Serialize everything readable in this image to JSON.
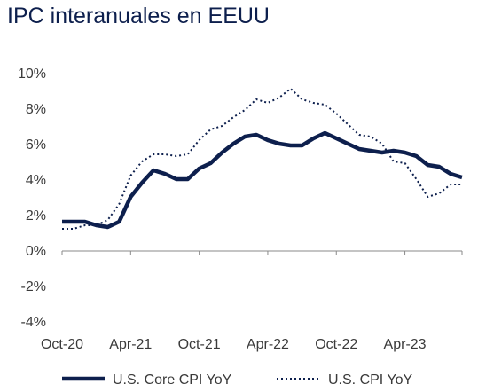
{
  "title": "IPC interanuales en EEUU",
  "chart_data": {
    "type": "line",
    "title": "IPC interanuales en EEUU",
    "xlabel": "",
    "ylabel": "",
    "x": [
      "Oct-20",
      "Nov-20",
      "Dec-20",
      "Jan-21",
      "Feb-21",
      "Mar-21",
      "Apr-21",
      "May-21",
      "Jun-21",
      "Jul-21",
      "Aug-21",
      "Sep-21",
      "Oct-21",
      "Nov-21",
      "Dec-21",
      "Jan-22",
      "Feb-22",
      "Mar-22",
      "Apr-22",
      "May-22",
      "Jun-22",
      "Jul-22",
      "Aug-22",
      "Sep-22",
      "Oct-22",
      "Nov-22",
      "Dec-22",
      "Jan-23",
      "Feb-23",
      "Mar-23",
      "Apr-23",
      "May-23",
      "Jun-23",
      "Jul-23",
      "Aug-23",
      "Sep-23"
    ],
    "x_tick_labels": [
      "Oct-20",
      "Apr-21",
      "Oct-21",
      "Apr-22",
      "Oct-22",
      "Apr-23"
    ],
    "y_tick_labels": [
      "10%",
      "8%",
      "6%",
      "4%",
      "2%",
      "0%",
      "-2%",
      "-4%"
    ],
    "ylim": [
      -4,
      10
    ],
    "y_unit": "%",
    "series": [
      {
        "name": "U.S. Core CPI YoY",
        "style": "solid",
        "color": "#0d1f4d",
        "values": [
          1.6,
          1.6,
          1.6,
          1.4,
          1.3,
          1.6,
          3.0,
          3.8,
          4.5,
          4.3,
          4.0,
          4.0,
          4.6,
          4.9,
          5.5,
          6.0,
          6.4,
          6.5,
          6.2,
          6.0,
          5.9,
          5.9,
          6.3,
          6.6,
          6.3,
          6.0,
          5.7,
          5.6,
          5.5,
          5.6,
          5.5,
          5.3,
          4.8,
          4.7,
          4.3,
          4.1
        ]
      },
      {
        "name": "U.S. CPI YoY",
        "style": "dotted",
        "color": "#0d1f4d",
        "values": [
          1.2,
          1.2,
          1.4,
          1.4,
          1.7,
          2.6,
          4.2,
          5.0,
          5.4,
          5.4,
          5.3,
          5.4,
          6.2,
          6.8,
          7.0,
          7.5,
          7.9,
          8.5,
          8.3,
          8.6,
          9.1,
          8.5,
          8.3,
          8.2,
          7.7,
          7.1,
          6.5,
          6.4,
          6.0,
          5.0,
          4.9,
          4.0,
          3.0,
          3.2,
          3.7,
          3.7
        ]
      }
    ],
    "legend_position": "bottom",
    "grid": false
  }
}
